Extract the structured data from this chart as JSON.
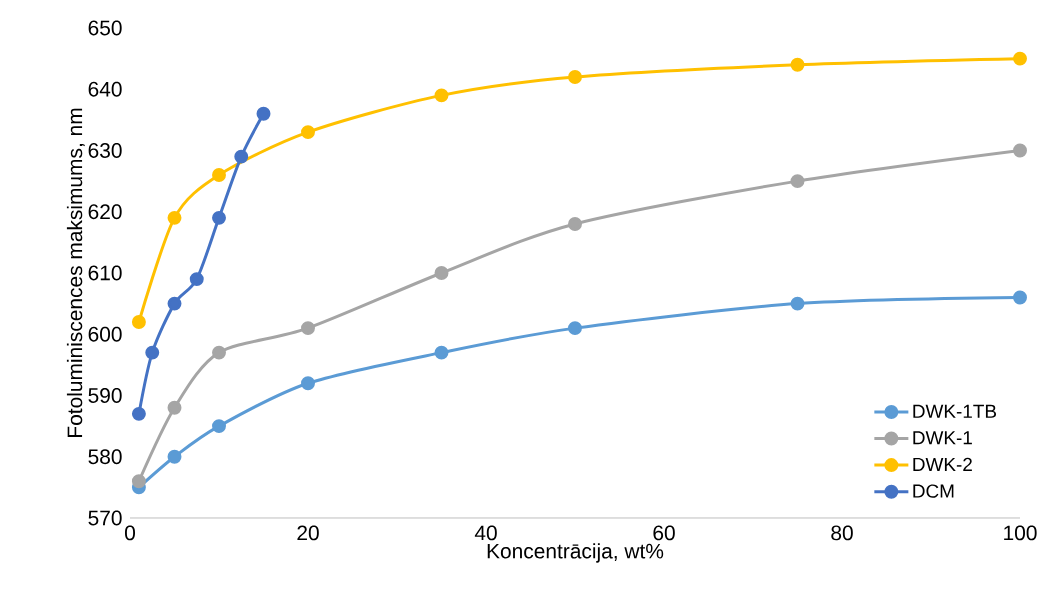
{
  "chart_data": {
    "type": "line",
    "xlabel": "Koncentrācija, wt%",
    "ylabel": "Fotoluminiscences maksimums, nm",
    "xlim": [
      0,
      100
    ],
    "ylim": [
      570,
      650
    ],
    "xticks": [
      0,
      20,
      40,
      60,
      80,
      100
    ],
    "yticks": [
      570,
      580,
      590,
      600,
      610,
      620,
      630,
      640,
      650
    ],
    "grid": false,
    "legend": "bottom right",
    "marker": "circle",
    "line_style": "solid",
    "series": [
      {
        "name": "DWK-1TB",
        "color": "#5b9bd5",
        "x": [
          1,
          5,
          10,
          20,
          35,
          50,
          75,
          100
        ],
        "values": [
          575,
          580,
          585,
          592,
          597,
          601,
          605,
          606
        ]
      },
      {
        "name": "DWK-1",
        "color": "#a5a5a5",
        "x": [
          1,
          5,
          10,
          20,
          35,
          50,
          75,
          100
        ],
        "values": [
          576,
          588,
          597,
          601,
          610,
          618,
          625,
          630
        ]
      },
      {
        "name": "DWK-2",
        "color": "#ffc000",
        "x": [
          1,
          5,
          10,
          20,
          35,
          50,
          75,
          100
        ],
        "values": [
          602,
          619,
          626,
          633,
          639,
          642,
          644,
          645
        ]
      },
      {
        "name": "DCM",
        "color": "#4472c4",
        "x": [
          1,
          2.5,
          5,
          7.5,
          10,
          12.5,
          15
        ],
        "values": [
          587,
          597,
          605,
          609,
          619,
          629,
          636
        ]
      }
    ]
  }
}
